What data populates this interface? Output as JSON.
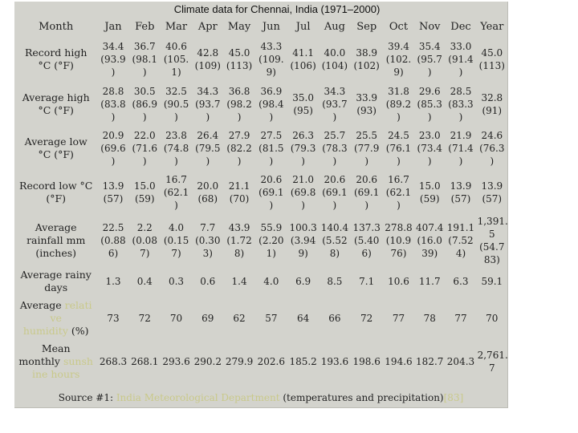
{
  "title": "Climate data for Chennai, India (1971–2000)",
  "header": {
    "corner": "Month",
    "months": [
      "Jan",
      "Feb",
      "Mar",
      "Apr",
      "May",
      "Jun",
      "Jul",
      "Aug",
      "Sep",
      "Oct",
      "Nov",
      "Dec",
      "Year"
    ]
  },
  "rows": [
    {
      "label": "Record high\n°C (°F)",
      "cells": [
        "34.4\n(93.9\n)",
        "36.7\n(98.1\n)",
        "40.6\n(105.\n1)",
        "42.8\n(109)",
        "45.0\n(113)",
        "43.3\n(109.\n9)",
        "41.1\n(106)",
        "40.0\n(104)",
        "38.9\n(102)",
        "39.4\n(102.\n9)",
        "35.4\n(95.7\n)",
        "33.0\n(91.4\n)",
        "45.0\n(113)"
      ]
    },
    {
      "label": "Average high\n°C (°F)",
      "cells": [
        "28.8\n(83.8\n)",
        "30.5\n(86.9\n)",
        "32.5\n(90.5\n)",
        "34.3\n(93.7\n)",
        "36.8\n(98.2\n)",
        "36.9\n(98.4\n)",
        "35.0\n(95)",
        "34.3\n(93.7\n)",
        "33.9\n(93)",
        "31.8\n(89.2\n)",
        "29.6\n(85.3\n)",
        "28.5\n(83.3\n)",
        "32.8\n(91)"
      ]
    },
    {
      "label": "Average low\n°C (°F)",
      "cells": [
        "20.9\n(69.6\n)",
        "22.0\n(71.6\n)",
        "23.8\n(74.8\n)",
        "26.4\n(79.5\n)",
        "27.9\n(82.2\n)",
        "27.5\n(81.5\n)",
        "26.3\n(79.3\n)",
        "25.7\n(78.3\n)",
        "25.5\n(77.9\n)",
        "24.5\n(76.1\n)",
        "23.0\n(73.4\n)",
        "21.9\n(71.4\n)",
        "24.6\n(76.3\n)"
      ]
    },
    {
      "label": "Record low °C\n(°F)",
      "cells": [
        "13.9\n(57)",
        "15.0\n(59)",
        "16.7\n(62.1\n)",
        "20.0\n(68)",
        "21.1\n(70)",
        "20.6\n(69.1\n)",
        "21.0\n(69.8\n)",
        "20.6\n(69.1\n)",
        "20.6\n(69.1\n)",
        "16.7\n(62.1\n)",
        "15.0\n(59)",
        "13.9\n(57)",
        "13.9\n(57)"
      ]
    },
    {
      "label": "Average\nrainfall mm\n(inches)",
      "cells": [
        "22.5\n(0.88\n6)",
        "2.2\n(0.08\n7)",
        "4.0\n(0.15\n7)",
        "7.7\n(0.30\n3)",
        "43.9\n(1.72\n8)",
        "55.9\n(2.20\n1)",
        "100.3\n(3.94\n9)",
        "140.4\n(5.52\n8)",
        "137.3\n(5.40\n6)",
        "278.8\n(10.9\n76)",
        "407.4\n(16.0\n39)",
        "191.1\n(7.52\n4)",
        "1,391.\n5\n(54.7\n83)"
      ]
    },
    {
      "label": "Average rainy\ndays",
      "cells": [
        "1.3",
        "0.4",
        "0.3",
        "0.6",
        "1.4",
        "4.0",
        "6.9",
        "8.5",
        "7.1",
        "10.6",
        "11.7",
        "6.3",
        "59.1"
      ]
    },
    {
      "label_parts": [
        "Average ",
        "relati\nve\nhumidity",
        " (%)"
      ],
      "cells": [
        "73",
        "72",
        "70",
        "69",
        "62",
        "57",
        "64",
        "66",
        "72",
        "77",
        "78",
        "77",
        "70"
      ]
    },
    {
      "label_parts": [
        "Mean\nmonthly ",
        "sunsh\nine hours",
        ""
      ],
      "cells": [
        "268.3",
        "268.1",
        "293.6",
        "290.2",
        "279.9",
        "202.6",
        "185.2",
        "193.6",
        "198.6",
        "194.6",
        "182.7",
        "204.3",
        "2,761.\n7"
      ]
    }
  ],
  "source": {
    "prefix": "Source #1: ",
    "link1": "India Meteorological Department",
    "middle": " (temperatures and precipitation)",
    "link2": "[83]"
  },
  "colors": {
    "panel_bg": "#d3d3cd",
    "link": "#c9c98a",
    "text": "#222222"
  }
}
